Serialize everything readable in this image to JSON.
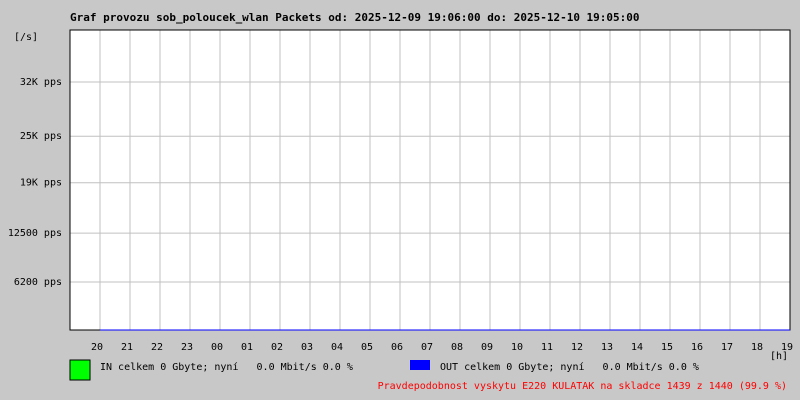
{
  "chart_data": {
    "type": "area",
    "title": "Graf provozu sob_poloucek_wlan Packets od: 2025-12-09 19:06:00 do: 2025-12-10 19:05:00",
    "y_unit": "[/s]",
    "x_unit": "[h]",
    "categories": [
      "20",
      "21",
      "22",
      "23",
      "00",
      "01",
      "02",
      "03",
      "04",
      "05",
      "06",
      "07",
      "08",
      "09",
      "10",
      "11",
      "12",
      "13",
      "14",
      "15",
      "16",
      "17",
      "18",
      "19"
    ],
    "series": [
      {
        "name": "IN celkem 0 Gbyte; nyní   0.0 Mbit/s 0.0 %",
        "color": "#00ff00",
        "values": [
          0,
          0,
          0,
          0,
          0,
          0,
          0,
          0,
          0,
          0,
          0,
          0,
          0,
          0,
          0,
          0,
          0,
          0,
          0,
          0,
          0,
          0,
          0,
          0
        ]
      },
      {
        "name": "OUT celkem 0 Gbyte; nyní   0.0 Mbit/s 0.0 %",
        "color": "#0000ff",
        "values": [
          0,
          0,
          0,
          0,
          0,
          0,
          0,
          0,
          0,
          0,
          0,
          0,
          0,
          0,
          0,
          0,
          0,
          0,
          0,
          0,
          0,
          0,
          0,
          0
        ]
      }
    ],
    "ylim": [
      0,
      38700
    ],
    "yticks": [
      {
        "value": 6200,
        "label": "6200 pps"
      },
      {
        "value": 12500,
        "label": "12500 pps"
      },
      {
        "value": 19000,
        "label": "19K pps"
      },
      {
        "value": 25000,
        "label": "25K pps"
      },
      {
        "value": 32000,
        "label": "32K pps"
      }
    ],
    "grid": true,
    "footnote": "Pravdepodobnost vyskytu E220 KULATAK na skladce 1439 z 1440 (99.9 %)"
  }
}
